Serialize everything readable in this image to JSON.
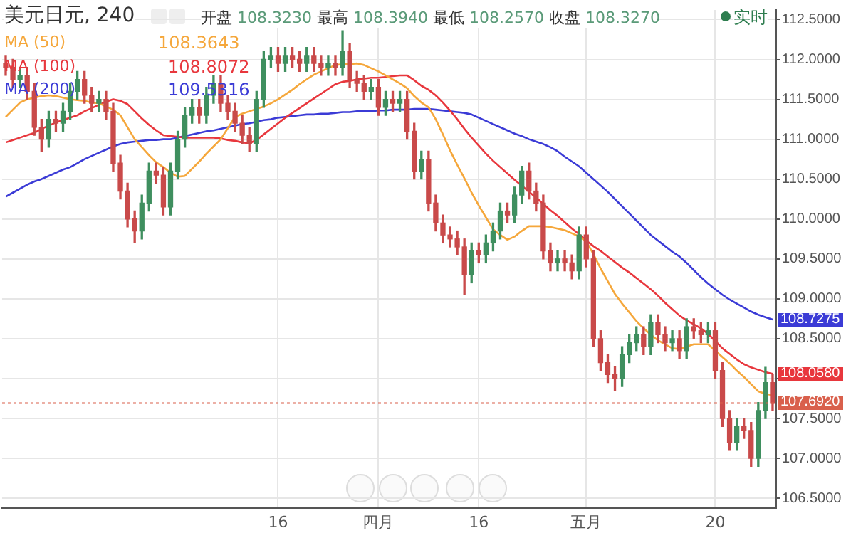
{
  "chart_data": {
    "type": "candlestick",
    "title": "美元日元, 240",
    "subtitle": "开盘 108.3230 最高 108.3940 最低 108.2570 收盘 108.3270",
    "categories": [
      null,
      null,
      null,
      null,
      null,
      null,
      null,
      null,
      null,
      null,
      null,
      null,
      null,
      null,
      null,
      null,
      null,
      null,
      null,
      null,
      null,
      null,
      null,
      null,
      null,
      null,
      null,
      null,
      null,
      null,
      null,
      null,
      null,
      null,
      null,
      null,
      null,
      null,
      "16",
      null,
      null,
      null,
      null,
      null,
      null,
      null,
      null,
      null,
      null,
      null,
      null,
      null,
      "四月",
      null,
      null,
      null,
      null,
      null,
      null,
      null,
      null,
      null,
      null,
      null,
      null,
      null,
      "16",
      null,
      null,
      null,
      null,
      null,
      null,
      null,
      null,
      null,
      null,
      null,
      null,
      null,
      null,
      "五月",
      null,
      null,
      null,
      null,
      null,
      null,
      null,
      null,
      null,
      null,
      null,
      null,
      null,
      null,
      null,
      null,
      null,
      "20",
      null,
      null,
      null,
      null,
      null,
      null,
      null,
      null
    ],
    "ohlc": [
      [
        111.95,
        112.05,
        111.8,
        111.9
      ],
      [
        111.9,
        112.0,
        111.65,
        111.75
      ],
      [
        111.75,
        111.9,
        111.65,
        111.8
      ],
      [
        111.8,
        111.9,
        111.5,
        111.6
      ],
      [
        111.6,
        111.7,
        111.05,
        111.15
      ],
      [
        111.15,
        111.25,
        110.85,
        111.0
      ],
      [
        111.0,
        111.35,
        110.9,
        111.25
      ],
      [
        111.25,
        111.35,
        111.1,
        111.2
      ],
      [
        111.2,
        111.45,
        111.1,
        111.35
      ],
      [
        111.35,
        111.7,
        111.25,
        111.6
      ],
      [
        111.6,
        111.85,
        111.5,
        111.75
      ],
      [
        111.75,
        111.85,
        111.45,
        111.55
      ],
      [
        111.55,
        111.65,
        111.35,
        111.45
      ],
      [
        111.45,
        111.6,
        111.35,
        111.5
      ],
      [
        111.5,
        111.6,
        111.25,
        111.35
      ],
      [
        111.35,
        111.45,
        110.6,
        110.7
      ],
      [
        110.7,
        110.8,
        110.25,
        110.35
      ],
      [
        110.35,
        110.45,
        109.9,
        110.0
      ],
      [
        110.0,
        110.1,
        109.7,
        109.85
      ],
      [
        109.85,
        110.3,
        109.75,
        110.2
      ],
      [
        110.2,
        110.7,
        110.1,
        110.6
      ],
      [
        110.6,
        110.7,
        110.45,
        110.55
      ],
      [
        110.55,
        110.65,
        110.05,
        110.15
      ],
      [
        110.15,
        110.7,
        110.05,
        110.6
      ],
      [
        110.6,
        111.1,
        110.5,
        111.0
      ],
      [
        111.0,
        111.4,
        110.9,
        111.3
      ],
      [
        111.3,
        111.5,
        111.2,
        111.4
      ],
      [
        111.4,
        111.5,
        111.2,
        111.3
      ],
      [
        111.3,
        111.65,
        111.2,
        111.55
      ],
      [
        111.55,
        111.8,
        111.45,
        111.7
      ],
      [
        111.7,
        111.8,
        111.35,
        111.45
      ],
      [
        111.45,
        111.55,
        111.25,
        111.35
      ],
      [
        111.35,
        111.45,
        111.1,
        111.2
      ],
      [
        111.2,
        111.3,
        110.95,
        111.05
      ],
      [
        111.05,
        111.15,
        110.85,
        110.95
      ],
      [
        110.95,
        111.6,
        110.85,
        111.5
      ],
      [
        111.5,
        112.1,
        111.4,
        112.0
      ],
      [
        112.0,
        112.15,
        111.9,
        112.05
      ],
      [
        112.05,
        112.15,
        111.85,
        111.95
      ],
      [
        111.95,
        112.15,
        111.85,
        112.05
      ],
      [
        112.05,
        112.15,
        111.9,
        112.0
      ],
      [
        112.0,
        112.1,
        111.85,
        111.95
      ],
      [
        111.95,
        112.15,
        111.85,
        112.05
      ],
      [
        112.05,
        112.15,
        111.85,
        111.95
      ],
      [
        111.95,
        112.05,
        111.8,
        111.9
      ],
      [
        111.9,
        112.05,
        111.8,
        111.95
      ],
      [
        111.95,
        112.05,
        111.8,
        111.9
      ],
      [
        111.9,
        112.36,
        111.8,
        112.1
      ],
      [
        112.1,
        112.2,
        111.65,
        111.75
      ],
      [
        111.75,
        111.85,
        111.6,
        111.7
      ],
      [
        111.7,
        111.8,
        111.5,
        111.6
      ],
      [
        111.6,
        111.75,
        111.5,
        111.65
      ],
      [
        111.65,
        111.75,
        111.3,
        111.4
      ],
      [
        111.4,
        111.6,
        111.3,
        111.5
      ],
      [
        111.5,
        111.6,
        111.35,
        111.45
      ],
      [
        111.45,
        111.6,
        111.35,
        111.5
      ],
      [
        111.5,
        111.6,
        111.0,
        111.1
      ],
      [
        111.1,
        111.2,
        110.5,
        110.6
      ],
      [
        110.6,
        110.85,
        110.5,
        110.75
      ],
      [
        110.75,
        110.85,
        110.1,
        110.2
      ],
      [
        110.2,
        110.3,
        109.85,
        109.95
      ],
      [
        109.95,
        110.05,
        109.7,
        109.8
      ],
      [
        109.8,
        109.9,
        109.65,
        109.75
      ],
      [
        109.75,
        109.85,
        109.55,
        109.65
      ],
      [
        109.65,
        109.75,
        109.05,
        109.3
      ],
      [
        109.3,
        109.7,
        109.2,
        109.6
      ],
      [
        109.6,
        109.7,
        109.45,
        109.55
      ],
      [
        109.55,
        109.8,
        109.45,
        109.7
      ],
      [
        109.7,
        109.95,
        109.6,
        109.85
      ],
      [
        109.85,
        110.2,
        109.75,
        110.1
      ],
      [
        110.1,
        110.2,
        109.95,
        110.05
      ],
      [
        110.05,
        110.4,
        109.95,
        110.3
      ],
      [
        110.3,
        110.66,
        110.2,
        110.6
      ],
      [
        110.6,
        110.7,
        110.25,
        110.35
      ],
      [
        110.35,
        110.45,
        110.1,
        110.2
      ],
      [
        110.2,
        110.3,
        109.5,
        109.6
      ],
      [
        109.6,
        109.7,
        109.35,
        109.45
      ],
      [
        109.45,
        109.6,
        109.35,
        109.5
      ],
      [
        109.5,
        109.6,
        109.35,
        109.45
      ],
      [
        109.45,
        109.55,
        109.25,
        109.35
      ],
      [
        109.35,
        109.9,
        109.25,
        109.8
      ],
      [
        109.8,
        109.9,
        109.4,
        109.5
      ],
      [
        109.5,
        109.6,
        108.4,
        108.5
      ],
      [
        108.5,
        108.6,
        108.1,
        108.2
      ],
      [
        108.2,
        108.3,
        107.95,
        108.05
      ],
      [
        108.05,
        108.15,
        107.85,
        108.0
      ],
      [
        108.0,
        108.4,
        107.9,
        108.3
      ],
      [
        108.3,
        108.55,
        108.2,
        108.45
      ],
      [
        108.45,
        108.65,
        108.35,
        108.55
      ],
      [
        108.55,
        108.65,
        108.3,
        108.4
      ],
      [
        108.4,
        108.8,
        108.3,
        108.7
      ],
      [
        108.7,
        108.8,
        108.45,
        108.55
      ],
      [
        108.55,
        108.65,
        108.35,
        108.45
      ],
      [
        108.45,
        108.6,
        108.35,
        108.5
      ],
      [
        108.5,
        108.6,
        108.25,
        108.35
      ],
      [
        108.35,
        108.75,
        108.25,
        108.65
      ],
      [
        108.65,
        108.75,
        108.5,
        108.6
      ],
      [
        108.6,
        108.7,
        108.45,
        108.55
      ],
      [
        108.55,
        108.7,
        108.45,
        108.6
      ],
      [
        108.6,
        108.7,
        108.0,
        108.1
      ],
      [
        108.1,
        108.2,
        107.4,
        107.5
      ],
      [
        107.5,
        107.6,
        107.1,
        107.2
      ],
      [
        107.2,
        107.5,
        107.1,
        107.4
      ],
      [
        107.4,
        107.5,
        107.25,
        107.35
      ],
      [
        107.35,
        107.45,
        106.9,
        107.0
      ],
      [
        107.0,
        107.7,
        106.9,
        107.6
      ],
      [
        107.6,
        108.14,
        107.5,
        107.95
      ],
      [
        107.95,
        108.05,
        107.6,
        107.69
      ]
    ],
    "colors": [
      "#c94a4a",
      "#c94a4a",
      "#3f8f5f",
      "#c94a4a",
      "#c94a4a",
      "#c94a4a",
      "#3f8f5f",
      "#c94a4a",
      "#3f8f5f",
      "#3f8f5f",
      "#3f8f5f",
      "#c94a4a",
      "#c94a4a",
      "#3f8f5f",
      "#c94a4a",
      "#c94a4a",
      "#c94a4a",
      "#c94a4a",
      "#c94a4a",
      "#3f8f5f",
      "#3f8f5f",
      "#c94a4a",
      "#c94a4a",
      "#3f8f5f",
      "#3f8f5f",
      "#3f8f5f",
      "#3f8f5f",
      "#c94a4a",
      "#3f8f5f",
      "#3f8f5f",
      "#c94a4a",
      "#c94a4a",
      "#c94a4a",
      "#c94a4a",
      "#c94a4a",
      "#3f8f5f",
      "#3f8f5f",
      "#3f8f5f",
      "#c94a4a",
      "#3f8f5f",
      "#c94a4a",
      "#c94a4a",
      "#3f8f5f",
      "#c94a4a",
      "#c94a4a",
      "#3f8f5f",
      "#c94a4a",
      "#3f8f5f",
      "#c94a4a",
      "#c94a4a",
      "#c94a4a",
      "#3f8f5f",
      "#c94a4a",
      "#3f8f5f",
      "#c94a4a",
      "#3f8f5f",
      "#c94a4a",
      "#c94a4a",
      "#3f8f5f",
      "#c94a4a",
      "#c94a4a",
      "#c94a4a",
      "#c94a4a",
      "#c94a4a",
      "#c94a4a",
      "#3f8f5f",
      "#c94a4a",
      "#3f8f5f",
      "#3f8f5f",
      "#3f8f5f",
      "#c94a4a",
      "#3f8f5f",
      "#3f8f5f",
      "#c94a4a",
      "#c94a4a",
      "#c94a4a",
      "#c94a4a",
      "#3f8f5f",
      "#c94a4a",
      "#c94a4a",
      "#3f8f5f",
      "#c94a4a",
      "#c94a4a",
      "#c94a4a",
      "#c94a4a",
      "#c94a4a",
      "#3f8f5f",
      "#3f8f5f",
      "#3f8f5f",
      "#c94a4a",
      "#3f8f5f",
      "#c94a4a",
      "#c94a4a",
      "#3f8f5f",
      "#c94a4a",
      "#3f8f5f",
      "#c94a4a",
      "#c94a4a",
      "#3f8f5f",
      "#c94a4a",
      "#c94a4a",
      "#c94a4a",
      "#3f8f5f",
      "#c94a4a",
      "#c94a4a",
      "#3f8f5f",
      "#3f8f5f",
      "#c94a4a"
    ],
    "series": [
      {
        "type": "line",
        "name": "MA (50)",
        "color": "#f5a73b",
        "values": [
          111.28,
          111.37,
          111.46,
          111.5,
          111.52,
          111.54,
          111.55,
          111.54,
          111.52,
          111.5,
          111.49,
          111.48,
          111.46,
          111.45,
          111.41,
          111.37,
          111.3,
          111.15,
          111.0,
          110.9,
          110.8,
          110.71,
          110.65,
          110.58,
          110.53,
          110.54,
          110.63,
          110.72,
          110.82,
          110.91,
          111.0,
          111.14,
          111.28,
          111.32,
          111.35,
          111.38,
          111.41,
          111.45,
          111.5,
          111.56,
          111.62,
          111.69,
          111.75,
          111.81,
          111.85,
          111.89,
          111.93,
          111.94,
          111.94,
          111.95,
          111.93,
          111.89,
          111.85,
          111.8,
          111.75,
          111.7,
          111.64,
          111.54,
          111.46,
          111.4,
          111.25,
          111.06,
          110.86,
          110.68,
          110.51,
          110.33,
          110.17,
          110.02,
          109.87,
          109.8,
          109.74,
          109.78,
          109.85,
          109.91,
          109.91,
          109.91,
          109.9,
          109.88,
          109.86,
          109.82,
          109.78,
          109.72,
          109.56,
          109.38,
          109.22,
          109.06,
          108.94,
          108.83,
          108.72,
          108.63,
          108.55,
          108.48,
          108.43,
          108.38,
          108.37,
          108.4,
          108.43,
          108.43,
          108.43,
          108.35,
          108.27,
          108.19,
          108.1,
          108.02,
          107.93,
          107.84,
          107.81,
          107.79
        ]
      },
      {
        "type": "line",
        "name": "MA (100)",
        "color": "#e8373d",
        "values": [
          110.96,
          110.99,
          111.02,
          111.05,
          111.08,
          111.13,
          111.17,
          111.21,
          111.24,
          111.27,
          111.3,
          111.35,
          111.39,
          111.43,
          111.47,
          111.5,
          111.48,
          111.44,
          111.35,
          111.26,
          111.18,
          111.11,
          111.05,
          111.04,
          111.03,
          111.02,
          111.02,
          111.02,
          111.02,
          111.02,
          111.01,
          110.99,
          110.98,
          110.96,
          110.95,
          110.99,
          111.06,
          111.13,
          111.2,
          111.27,
          111.33,
          111.39,
          111.45,
          111.51,
          111.57,
          111.63,
          111.69,
          111.72,
          111.73,
          111.75,
          111.76,
          111.77,
          111.77,
          111.78,
          111.79,
          111.8,
          111.8,
          111.74,
          111.67,
          111.62,
          111.55,
          111.46,
          111.36,
          111.25,
          111.13,
          111.02,
          110.92,
          110.82,
          110.73,
          110.65,
          110.57,
          110.49,
          110.42,
          110.34,
          110.27,
          110.19,
          110.11,
          110.04,
          109.96,
          109.88,
          109.81,
          109.73,
          109.66,
          109.6,
          109.53,
          109.46,
          109.39,
          109.33,
          109.26,
          109.19,
          109.12,
          109.04,
          108.95,
          108.87,
          108.79,
          108.73,
          108.68,
          108.63,
          108.56,
          108.47,
          108.38,
          108.31,
          108.24,
          108.18,
          108.14,
          108.11,
          108.08,
          108.06
        ]
      },
      {
        "type": "line",
        "name": "MA (200)",
        "color": "#3b3bd6",
        "values": [
          110.28,
          110.33,
          110.38,
          110.43,
          110.47,
          110.5,
          110.54,
          110.58,
          110.62,
          110.65,
          110.7,
          110.75,
          110.79,
          110.83,
          110.87,
          110.91,
          110.94,
          110.96,
          110.97,
          110.98,
          110.99,
          110.99,
          111.0,
          111.0,
          111.02,
          111.04,
          111.06,
          111.08,
          111.1,
          111.11,
          111.13,
          111.15,
          111.17,
          111.19,
          111.2,
          111.22,
          111.24,
          111.25,
          111.27,
          111.28,
          111.29,
          111.3,
          111.31,
          111.31,
          111.32,
          111.32,
          111.33,
          111.34,
          111.34,
          111.35,
          111.35,
          111.35,
          111.36,
          111.36,
          111.37,
          111.37,
          111.37,
          111.38,
          111.38,
          111.38,
          111.37,
          111.36,
          111.35,
          111.34,
          111.33,
          111.31,
          111.27,
          111.23,
          111.19,
          111.15,
          111.11,
          111.07,
          111.04,
          111.0,
          110.97,
          110.94,
          110.9,
          110.85,
          110.78,
          110.72,
          110.66,
          110.58,
          110.5,
          110.42,
          110.34,
          110.25,
          110.16,
          110.07,
          109.98,
          109.89,
          109.8,
          109.73,
          109.66,
          109.59,
          109.53,
          109.45,
          109.36,
          109.27,
          109.19,
          109.12,
          109.05,
          108.99,
          108.94,
          108.89,
          108.84,
          108.8,
          108.77,
          108.74
        ]
      }
    ],
    "ylim": [
      106.38,
      112.62
    ],
    "yticks": [
      {
        "value": 106.5,
        "label": "106.5000"
      },
      {
        "value": 107,
        "label": "107.0000"
      },
      {
        "value": 107.5,
        "label": "107.5000"
      },
      {
        "value": 108,
        "label": null
      },
      {
        "value": 108.5,
        "label": "108.5000"
      },
      {
        "value": 109,
        "label": "109.0000"
      },
      {
        "value": 109.5,
        "label": "109.5000"
      },
      {
        "value": 110,
        "label": "110.0000"
      },
      {
        "value": 110.5,
        "label": "110.5000"
      },
      {
        "value": 111,
        "label": "111.0000"
      },
      {
        "value": 111.5,
        "label": "111.5000"
      },
      {
        "value": 112,
        "label": "112.0000"
      },
      {
        "value": 112.5,
        "label": "112.5000"
      }
    ],
    "ref_lines": [
      {
        "axis": "y",
        "value": 107.692,
        "label": "107.6920",
        "color": "#d9604c",
        "line_style": "dotted"
      }
    ],
    "annotations": [
      "实时",
      "108.3643",
      "108.8072",
      "109.5316",
      "108.7275",
      "108.0580"
    ],
    "grid": true,
    "legend": "top left"
  }
}
